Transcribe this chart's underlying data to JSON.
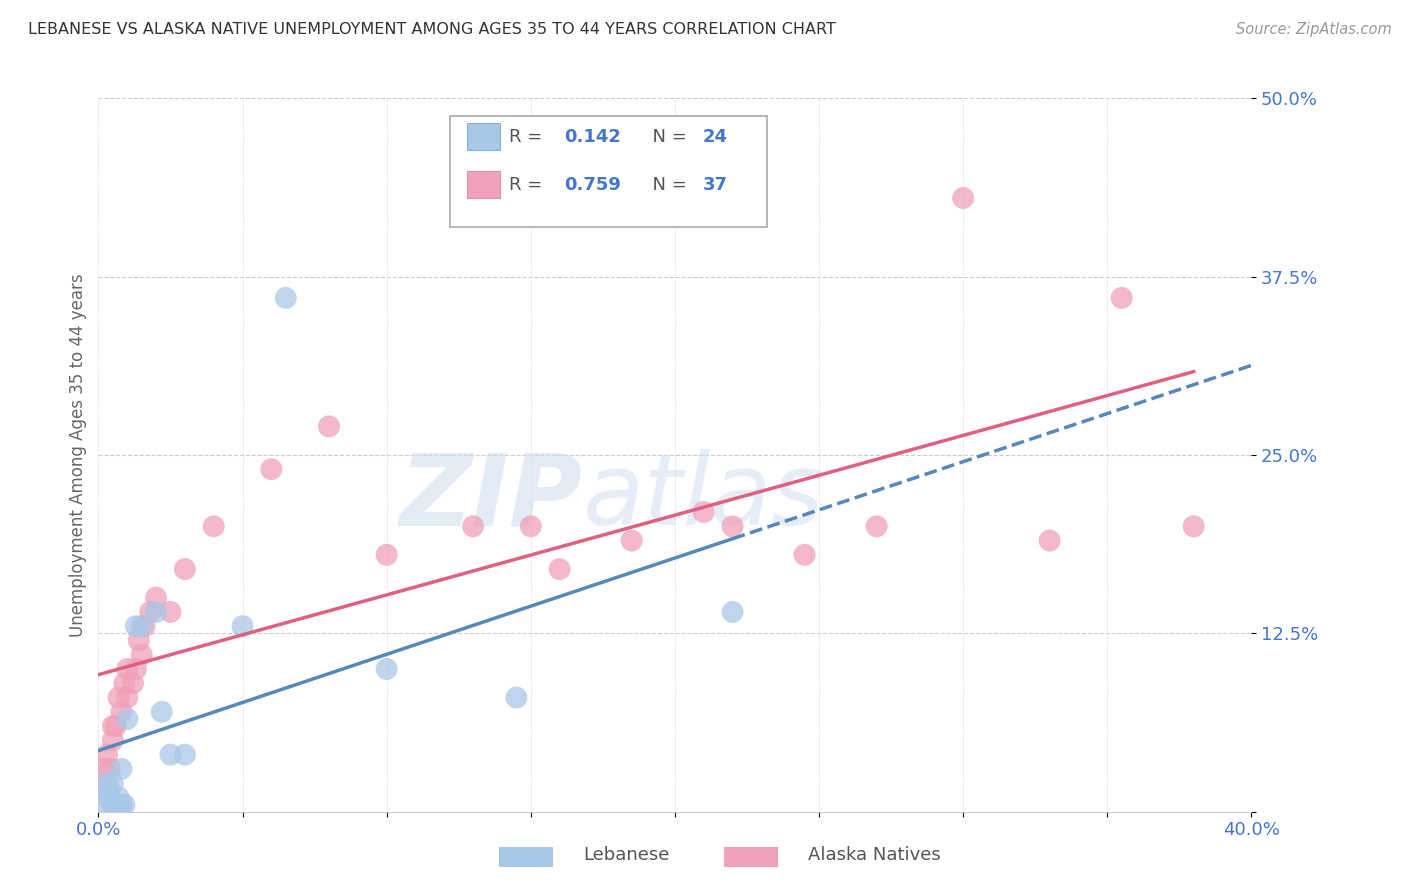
{
  "title": "LEBANESE VS ALASKA NATIVE UNEMPLOYMENT AMONG AGES 35 TO 44 YEARS CORRELATION CHART",
  "source": "Source: ZipAtlas.com",
  "ylabel": "Unemployment Among Ages 35 to 44 years",
  "legend_label1": "Lebanese",
  "legend_label2": "Alaska Natives",
  "R1": 0.142,
  "N1": 24,
  "R2": 0.759,
  "N2": 37,
  "xlim": [
    0.0,
    0.4
  ],
  "ylim": [
    0.0,
    0.5
  ],
  "yticks": [
    0.0,
    0.125,
    0.25,
    0.375,
    0.5
  ],
  "ytick_labels": [
    "",
    "12.5%",
    "25.0%",
    "37.5%",
    "50.0%"
  ],
  "xticks": [
    0.0,
    0.05,
    0.1,
    0.15,
    0.2,
    0.25,
    0.3,
    0.35,
    0.4
  ],
  "xtick_labels": [
    "0.0%",
    "",
    "",
    "",
    "",
    "",
    "",
    "",
    "40.0%"
  ],
  "color_blue": "#a8c8e8",
  "color_pink": "#f0a0b8",
  "trendline_blue": "#5588bb",
  "trendline_pink": "#e06080",
  "axis_label_color": "#4477cc",
  "title_color": "#333333",
  "watermark_zip": "ZIP",
  "watermark_atlas": "atlas",
  "lebanese_x": [
    0.002,
    0.003,
    0.003,
    0.004,
    0.005,
    0.005,
    0.006,
    0.007,
    0.007,
    0.008,
    0.008,
    0.009,
    0.01,
    0.013,
    0.015,
    0.02,
    0.022,
    0.025,
    0.03,
    0.05,
    0.065,
    0.1,
    0.145,
    0.22
  ],
  "lebanese_y": [
    0.005,
    0.01,
    0.02,
    0.01,
    0.005,
    0.02,
    0.005,
    0.005,
    0.01,
    0.005,
    0.03,
    0.005,
    0.065,
    0.13,
    0.13,
    0.14,
    0.07,
    0.04,
    0.04,
    0.13,
    0.36,
    0.1,
    0.08,
    0.14
  ],
  "alaska_x": [
    0.001,
    0.002,
    0.003,
    0.004,
    0.005,
    0.005,
    0.006,
    0.007,
    0.008,
    0.009,
    0.01,
    0.01,
    0.012,
    0.013,
    0.014,
    0.015,
    0.016,
    0.018,
    0.02,
    0.025,
    0.03,
    0.04,
    0.06,
    0.08,
    0.1,
    0.13,
    0.15,
    0.16,
    0.185,
    0.21,
    0.22,
    0.245,
    0.27,
    0.3,
    0.33,
    0.355,
    0.38
  ],
  "alaska_y": [
    0.02,
    0.03,
    0.04,
    0.03,
    0.05,
    0.06,
    0.06,
    0.08,
    0.07,
    0.09,
    0.08,
    0.1,
    0.09,
    0.1,
    0.12,
    0.11,
    0.13,
    0.14,
    0.15,
    0.14,
    0.17,
    0.2,
    0.24,
    0.27,
    0.18,
    0.2,
    0.2,
    0.17,
    0.19,
    0.21,
    0.2,
    0.18,
    0.2,
    0.43,
    0.19,
    0.36,
    0.2
  ]
}
